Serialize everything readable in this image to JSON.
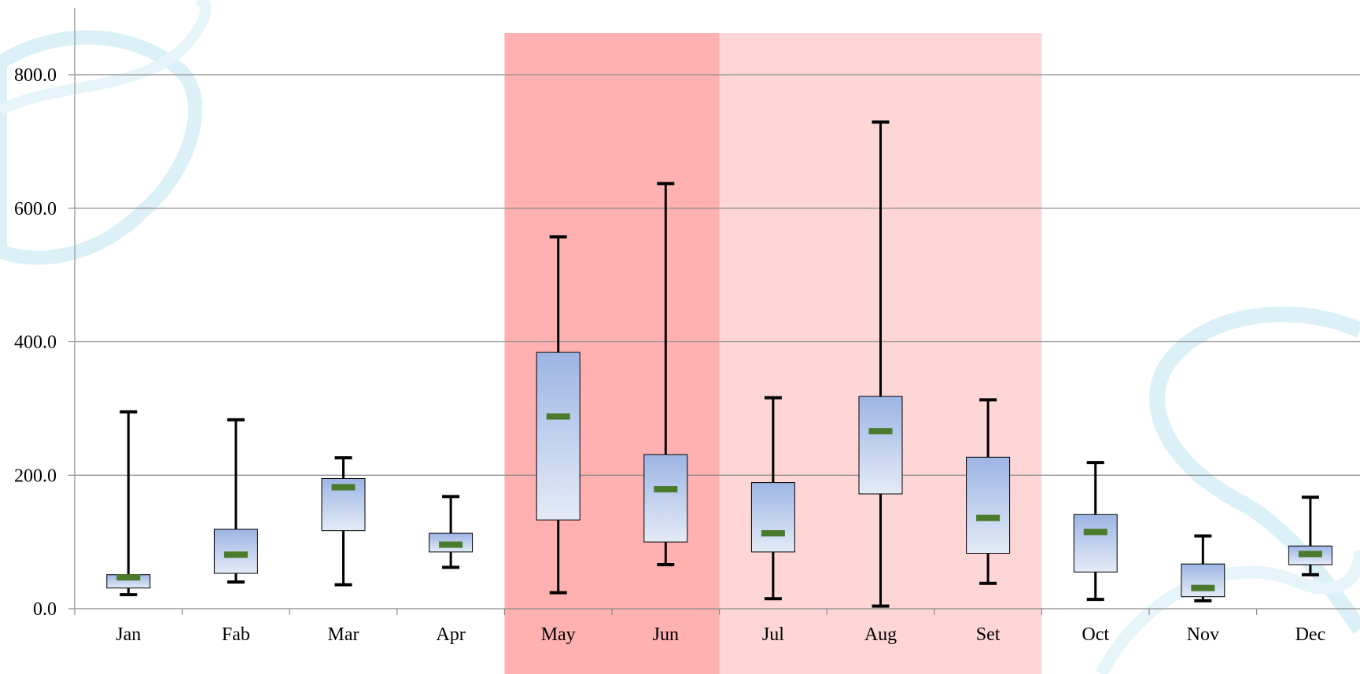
{
  "colors": {
    "highlight_strong": "#ffb0b0",
    "highlight_light": "#ffd6d6",
    "box_fill_top": "#9db5e4",
    "box_fill_bottom": "#e4ebf7",
    "median_marker": "#4a7a2c",
    "gridline": "#8c8c8c",
    "whisker": "#000000",
    "background_ribbon": "#bfe4f2"
  },
  "chart_data": {
    "type": "boxplot",
    "title": "",
    "xlabel": "",
    "ylabel": "",
    "ylim": [
      0,
      800
    ],
    "yticks": [
      "0.0",
      "200.0",
      "400.0",
      "600.0",
      "800.0"
    ],
    "grid": true,
    "legend": "none",
    "categories": [
      "Jan",
      "Fab",
      "Mar",
      "Apr",
      "May",
      "Jun",
      "Jul",
      "Aug",
      "Set",
      "Oct",
      "Nov",
      "Dec"
    ],
    "boxes": [
      {
        "label": "Jan",
        "min": 21,
        "q1": 31,
        "median": 47,
        "q3": 51,
        "max": 295
      },
      {
        "label": "Fab",
        "min": 40,
        "q1": 53,
        "median": 81,
        "q3": 119,
        "max": 283
      },
      {
        "label": "Mar",
        "min": 36,
        "q1": 117,
        "median": 182,
        "q3": 195,
        "max": 226
      },
      {
        "label": "Apr",
        "min": 62,
        "q1": 85,
        "median": 96,
        "q3": 113,
        "max": 168
      },
      {
        "label": "May",
        "min": 24,
        "q1": 133,
        "median": 288,
        "q3": 384,
        "max": 557
      },
      {
        "label": "Jun",
        "min": 66,
        "q1": 100,
        "median": 179,
        "q3": 231,
        "max": 637
      },
      {
        "label": "Jul",
        "min": 15,
        "q1": 85,
        "median": 113,
        "q3": 189,
        "max": 316
      },
      {
        "label": "Aug",
        "min": 4,
        "q1": 172,
        "median": 266,
        "q3": 318,
        "max": 729
      },
      {
        "label": "Set",
        "min": 38,
        "q1": 83,
        "median": 136,
        "q3": 227,
        "max": 313
      },
      {
        "label": "Oct",
        "min": 14,
        "q1": 55,
        "median": 115,
        "q3": 141,
        "max": 219
      },
      {
        "label": "Nov",
        "min": 12,
        "q1": 18,
        "median": 31,
        "q3": 67,
        "max": 109
      },
      {
        "label": "Dec",
        "min": 51,
        "q1": 66,
        "median": 82,
        "q3": 94,
        "max": 167
      }
    ],
    "highlight_bands": [
      {
        "from": "May",
        "to": "Jun",
        "style": "strong"
      },
      {
        "from": "Jul",
        "to": "Set",
        "style": "light"
      }
    ]
  }
}
